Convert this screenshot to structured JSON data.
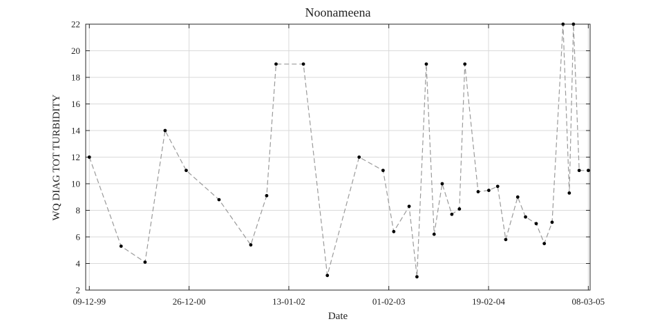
{
  "chart_data": {
    "type": "line",
    "title": "Noonameena",
    "xlabel": "Date",
    "ylabel": "WQ DIAG TOT TURBIDITY",
    "ylim": [
      2,
      22
    ],
    "xlim": [
      "1999-11-25",
      "2005-03-15"
    ],
    "grid": true,
    "yticks": [
      2,
      4,
      6,
      8,
      10,
      12,
      14,
      16,
      18,
      20,
      22
    ],
    "xticks": [
      {
        "date": "1999-12-09",
        "label": "09-12-99"
      },
      {
        "date": "2000-12-26",
        "label": "26-12-00"
      },
      {
        "date": "2002-01-13",
        "label": "13-01-02"
      },
      {
        "date": "2003-02-01",
        "label": "01-02-03"
      },
      {
        "date": "2004-02-19",
        "label": "19-02-04"
      },
      {
        "date": "2005-03-08",
        "label": "08-03-05"
      }
    ],
    "series": [
      {
        "style": "dashed gray line with black dot markers",
        "points": [
          {
            "x": "1999-12-09",
            "y": 12.0
          },
          {
            "x": "2000-04-09",
            "y": 5.3
          },
          {
            "x": "2000-07-10",
            "y": 4.1
          },
          {
            "x": "2000-09-25",
            "y": 14.0
          },
          {
            "x": "2000-12-15",
            "y": 11.0
          },
          {
            "x": "2001-04-20",
            "y": 8.8
          },
          {
            "x": "2001-08-20",
            "y": 5.4
          },
          {
            "x": "2001-10-20",
            "y": 9.1
          },
          {
            "x": "2001-11-25",
            "y": 19.0
          },
          {
            "x": "2002-03-10",
            "y": 19.0
          },
          {
            "x": "2002-06-10",
            "y": 3.1
          },
          {
            "x": "2002-10-10",
            "y": 12.0
          },
          {
            "x": "2003-01-10",
            "y": 11.0
          },
          {
            "x": "2003-02-20",
            "y": 6.4
          },
          {
            "x": "2003-04-20",
            "y": 8.3
          },
          {
            "x": "2003-05-20",
            "y": 3.0
          },
          {
            "x": "2003-06-25",
            "y": 19.0
          },
          {
            "x": "2003-07-25",
            "y": 6.2
          },
          {
            "x": "2003-08-25",
            "y": 10.0
          },
          {
            "x": "2003-10-01",
            "y": 7.7
          },
          {
            "x": "2003-10-30",
            "y": 8.1
          },
          {
            "x": "2003-11-20",
            "y": 19.0
          },
          {
            "x": "2004-01-10",
            "y": 9.4
          },
          {
            "x": "2004-02-20",
            "y": 9.5
          },
          {
            "x": "2004-03-25",
            "y": 9.8
          },
          {
            "x": "2004-04-25",
            "y": 5.8
          },
          {
            "x": "2004-06-10",
            "y": 9.0
          },
          {
            "x": "2004-07-10",
            "y": 7.5
          },
          {
            "x": "2004-08-20",
            "y": 7.0
          },
          {
            "x": "2004-09-20",
            "y": 5.5
          },
          {
            "x": "2004-10-20",
            "y": 7.1
          },
          {
            "x": "2004-12-01",
            "y": 22.0
          },
          {
            "x": "2004-12-25",
            "y": 9.3
          },
          {
            "x": "2005-01-10",
            "y": 22.0
          },
          {
            "x": "2005-02-01",
            "y": 11.0
          },
          {
            "x": "2005-03-08",
            "y": 11.0
          }
        ]
      }
    ]
  }
}
